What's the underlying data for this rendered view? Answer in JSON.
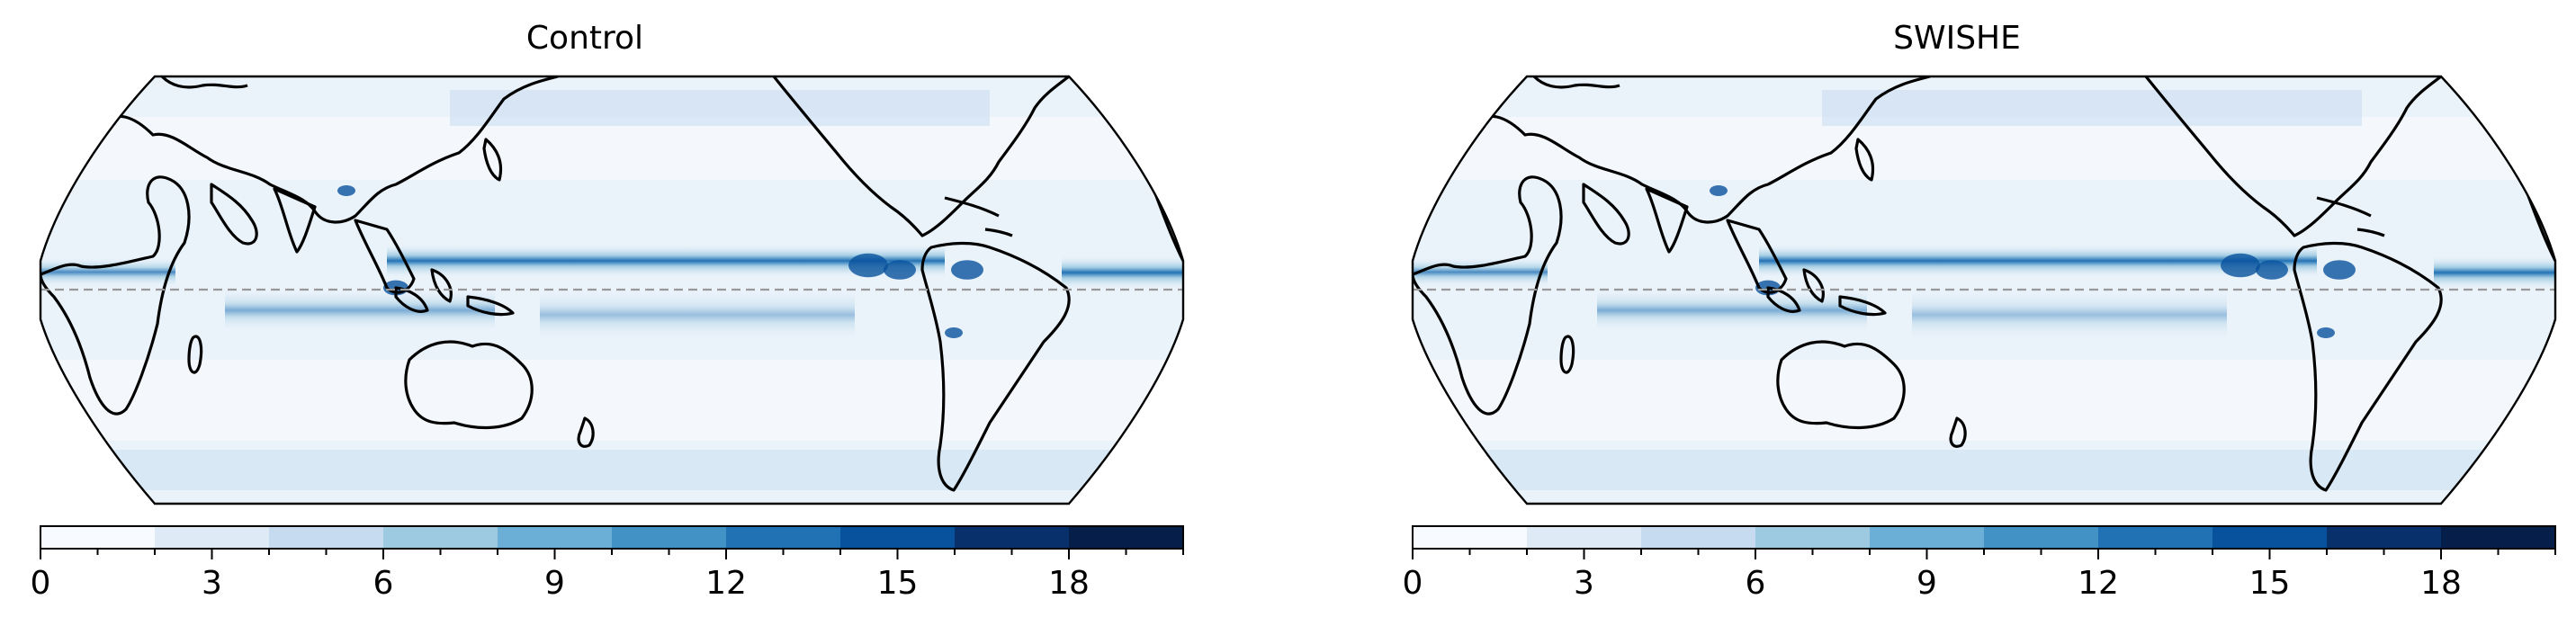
{
  "chart_data": [
    {
      "type": "heatmap",
      "title": "Control",
      "colorbar": {
        "range": [
          0,
          20
        ],
        "levels": [
          0,
          2,
          4,
          6,
          8,
          10,
          12,
          14,
          16,
          18,
          20
        ],
        "ticks": [
          0,
          3,
          6,
          9,
          12,
          15,
          18
        ],
        "tick_labels": [
          "0",
          "3",
          "6",
          "9",
          "12",
          "15",
          "18"
        ],
        "colors": [
          "#f7fbff",
          "#deebf7",
          "#c6dbef",
          "#9ecae1",
          "#6baed6",
          "#4292c6",
          "#2171b5",
          "#08519c",
          "#08306b",
          "#061f4a"
        ]
      },
      "projection": "Robinson-like, Pacific-centered",
      "equator_line": "dashed"
    },
    {
      "type": "heatmap",
      "title": "SWISHE",
      "colorbar": {
        "range": [
          0,
          20
        ],
        "levels": [
          0,
          2,
          4,
          6,
          8,
          10,
          12,
          14,
          16,
          18,
          20
        ],
        "ticks": [
          0,
          3,
          6,
          9,
          12,
          15,
          18
        ],
        "tick_labels": [
          "0",
          "3",
          "6",
          "9",
          "12",
          "15",
          "18"
        ],
        "colors": [
          "#f7fbff",
          "#deebf7",
          "#c6dbef",
          "#9ecae1",
          "#6baed6",
          "#4292c6",
          "#2171b5",
          "#08519c",
          "#08306b",
          "#061f4a"
        ]
      },
      "projection": "Robinson-like, Pacific-centered",
      "equator_line": "dashed"
    }
  ]
}
